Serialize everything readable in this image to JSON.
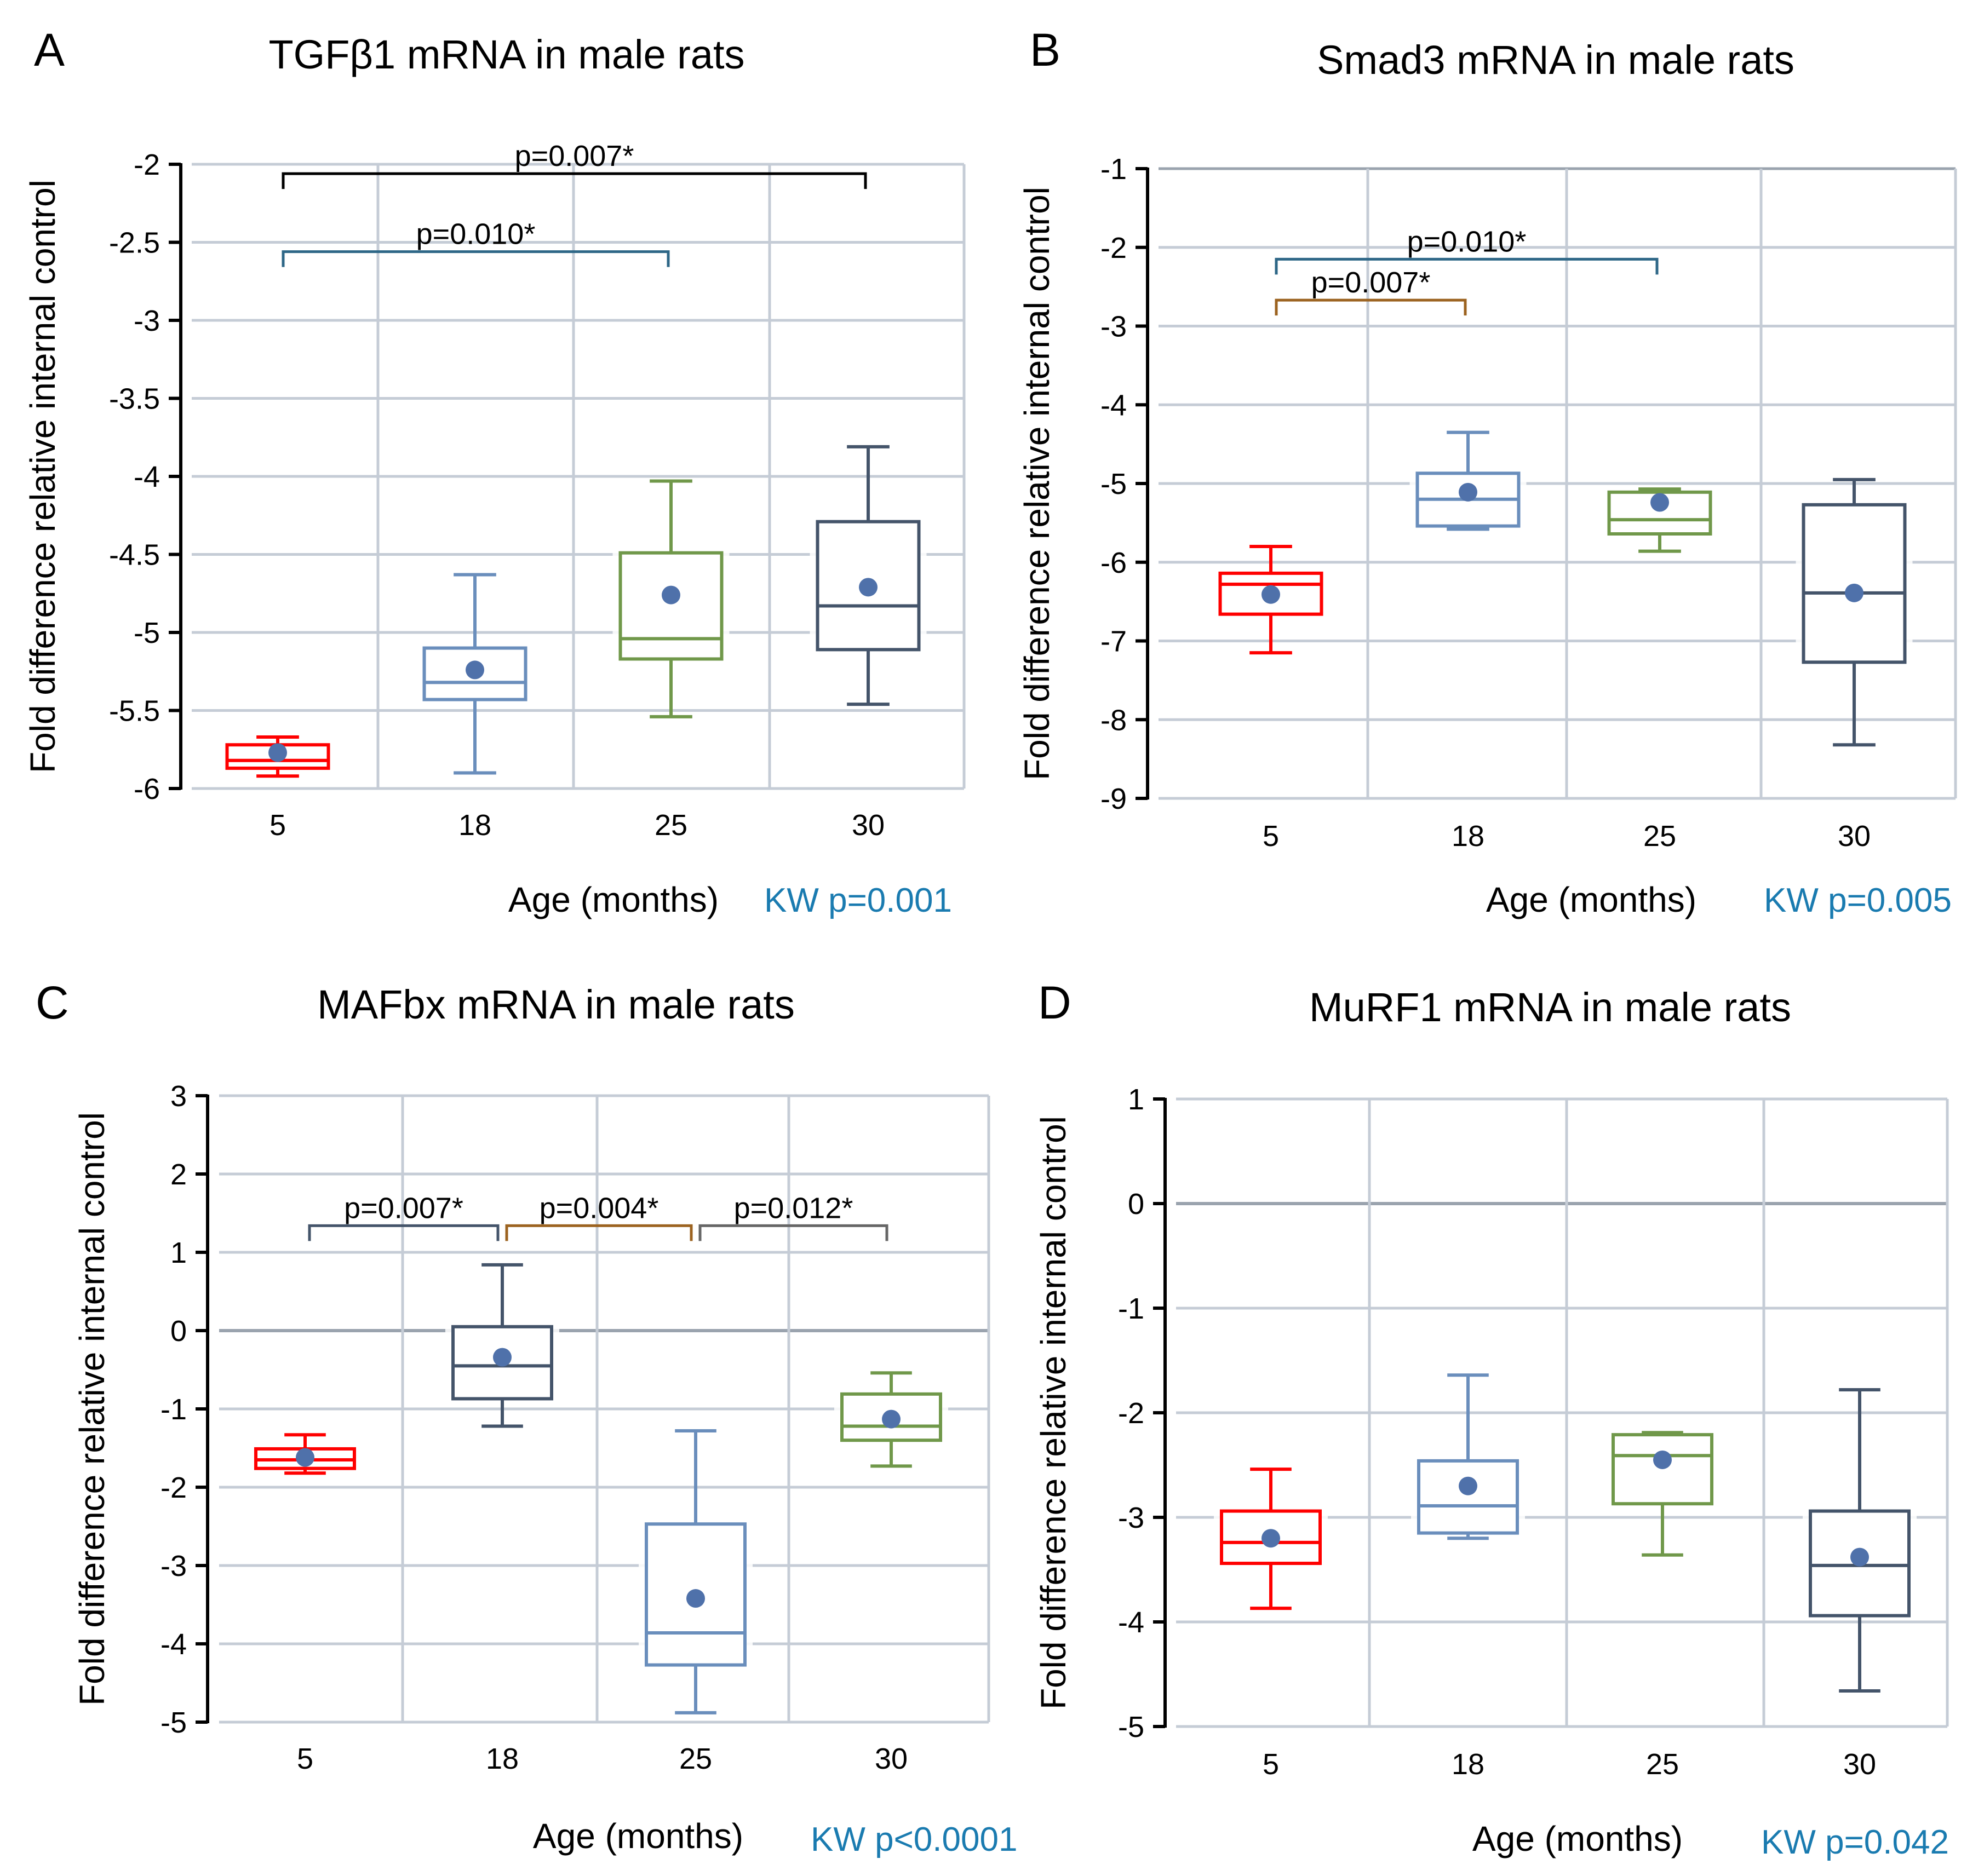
{
  "chart_data": [
    {
      "type": "box",
      "letter": "A",
      "title": "TGFβ1 mRNA in male rats",
      "xlabel": "Age (months)",
      "ylabel": "Fold difference relative internal control",
      "kw": "KW p=0.001",
      "categories": [
        "5",
        "18",
        "25",
        "30"
      ],
      "ylim": [
        -6,
        -2
      ],
      "yticks": [
        -2,
        -2.5,
        -3,
        -3.5,
        -4,
        -4.5,
        -5,
        -5.5,
        -6
      ],
      "ytick_labels": [
        "-2",
        "-2.5",
        "-3",
        "-3.5",
        "-4",
        "-4.5",
        "-5",
        "-5.5",
        "-6"
      ],
      "grid": true,
      "zero_line": false,
      "boxes": [
        {
          "category": "5",
          "min": -5.92,
          "q1": -5.87,
          "median": -5.82,
          "q3": -5.72,
          "max": -5.67,
          "mean": -5.77,
          "color": "#FF0000"
        },
        {
          "category": "18",
          "min": -5.9,
          "q1": -5.43,
          "median": -5.32,
          "q3": -5.1,
          "max": -4.63,
          "mean": -5.24,
          "color": "#6A8EBC"
        },
        {
          "category": "25",
          "min": -5.54,
          "q1": -5.17,
          "median": -5.04,
          "q3": -4.49,
          "max": -4.03,
          "mean": -4.76,
          "color": "#70984A"
        },
        {
          "category": "30",
          "min": -5.46,
          "q1": -5.11,
          "median": -4.83,
          "q3": -4.29,
          "max": -3.81,
          "mean": -4.71,
          "color": "#44546A"
        }
      ],
      "comparisons": [
        {
          "from": "5",
          "to": "30",
          "level": -2.06,
          "label": "p=0.007*",
          "color": "#000000"
        },
        {
          "from": "5",
          "to": "25",
          "level": -2.56,
          "label": "p=0.010*",
          "color": "#2E6787"
        }
      ]
    },
    {
      "type": "box",
      "letter": "B",
      "title": "Smad3 mRNA in male rats",
      "xlabel": "Age (months)",
      "ylabel": "Fold difference relative internal control",
      "kw": "KW p=0.005",
      "categories": [
        "5",
        "18",
        "25",
        "30"
      ],
      "ylim": [
        -9,
        -1
      ],
      "yticks": [
        -1,
        -2,
        -3,
        -4,
        -5,
        -6,
        -7,
        -8,
        -9
      ],
      "ytick_labels": [
        "-1",
        "-2",
        "-3",
        "-4",
        "-5",
        "-6",
        "-7",
        "-8",
        "-9"
      ],
      "grid": true,
      "zero_line": false,
      "boxes": [
        {
          "category": "5",
          "min": -7.15,
          "q1": -6.66,
          "median": -6.28,
          "q3": -6.14,
          "max": -5.8,
          "mean": -6.41,
          "color": "#FF0000"
        },
        {
          "category": "18",
          "min": -5.58,
          "q1": -5.54,
          "median": -5.2,
          "q3": -4.87,
          "max": -4.35,
          "mean": -5.11,
          "color": "#6A8EBC"
        },
        {
          "category": "25",
          "min": -5.86,
          "q1": -5.64,
          "median": -5.46,
          "q3": -5.11,
          "max": -5.07,
          "mean": -5.24,
          "color": "#70984A"
        },
        {
          "category": "30",
          "min": -8.32,
          "q1": -7.27,
          "median": -6.39,
          "q3": -5.27,
          "max": -4.95,
          "mean": -6.39,
          "color": "#44546A"
        }
      ],
      "comparisons": [
        {
          "from": "5",
          "to": "25",
          "level": -2.15,
          "label": "p=0.010*",
          "color": "#2E6787"
        },
        {
          "from": "5",
          "to": "18",
          "level": -2.67,
          "label": "p=0.007*",
          "color": "#9C6320"
        }
      ]
    },
    {
      "type": "box",
      "letter": "C",
      "title": "MAFbx mRNA in male rats",
      "xlabel": "Age (months)",
      "ylabel": "Fold difference relative internal control",
      "kw": "KW p<0.0001",
      "categories": [
        "5",
        "18",
        "25",
        "30"
      ],
      "ylim": [
        -5,
        3
      ],
      "yticks": [
        3,
        2,
        1,
        0,
        -1,
        -2,
        -3,
        -4,
        -5
      ],
      "ytick_labels": [
        "3",
        "2",
        "1",
        "0",
        "-1",
        "-2",
        "-3",
        "-4",
        "-5"
      ],
      "grid": true,
      "zero_line": true,
      "boxes": [
        {
          "category": "5",
          "min": -1.82,
          "q1": -1.76,
          "median": -1.65,
          "q3": -1.51,
          "max": -1.33,
          "mean": -1.62,
          "color": "#FF0000"
        },
        {
          "category": "18",
          "min": -1.22,
          "q1": -0.87,
          "median": -0.45,
          "q3": 0.05,
          "max": 0.84,
          "mean": -0.34,
          "color": "#44546A"
        },
        {
          "category": "25",
          "min": -4.88,
          "q1": -4.27,
          "median": -3.86,
          "q3": -2.47,
          "max": -1.28,
          "mean": -3.42,
          "color": "#6A8EBC"
        },
        {
          "category": "30",
          "min": -1.73,
          "q1": -1.4,
          "median": -1.22,
          "q3": -0.81,
          "max": -0.54,
          "mean": -1.13,
          "color": "#70984A"
        }
      ],
      "comparisons": [
        {
          "from": "5",
          "to": "18",
          "level": 1.34,
          "label": "p=0.007*",
          "color": "#44546A"
        },
        {
          "from": "18",
          "to": "25",
          "level": 1.34,
          "label": "p=0.004*",
          "color": "#9C6320"
        },
        {
          "from": "25",
          "to": "30",
          "level": 1.34,
          "label": "p=0.012*",
          "color": "#666666"
        }
      ]
    },
    {
      "type": "box",
      "letter": "D",
      "title": "MuRF1 mRNA in male rats",
      "xlabel": "Age (months)",
      "ylabel": "Fold difference relative internal control",
      "kw": "KW p=0.042",
      "categories": [
        "5",
        "18",
        "25",
        "30"
      ],
      "ylim": [
        -5,
        1
      ],
      "yticks": [
        1,
        0,
        -1,
        -2,
        -3,
        -4,
        -5
      ],
      "ytick_labels": [
        "1",
        "0",
        "-1",
        "-2",
        "-3",
        "-4",
        "-5"
      ],
      "grid": true,
      "zero_line": true,
      "boxes": [
        {
          "category": "5",
          "min": -3.87,
          "q1": -3.44,
          "median": -3.24,
          "q3": -2.94,
          "max": -2.54,
          "mean": -3.2,
          "color": "#FF0000"
        },
        {
          "category": "18",
          "min": -3.2,
          "q1": -3.15,
          "median": -2.89,
          "q3": -2.46,
          "max": -1.64,
          "mean": -2.7,
          "color": "#6A8EBC"
        },
        {
          "category": "25",
          "min": -3.36,
          "q1": -2.87,
          "median": -2.41,
          "q3": -2.21,
          "max": -2.19,
          "mean": -2.45,
          "color": "#70984A"
        },
        {
          "category": "30",
          "min": -4.66,
          "q1": -3.94,
          "median": -3.46,
          "q3": -2.94,
          "max": -1.78,
          "mean": -3.38,
          "color": "#44546A"
        }
      ],
      "comparisons": []
    }
  ],
  "colors": {
    "mean_marker": "#4F71AA",
    "grid": "#C5CCD6",
    "zero_line": "#9AA3AE",
    "axis": "#000000",
    "kw_text": "#1A7BB0"
  }
}
